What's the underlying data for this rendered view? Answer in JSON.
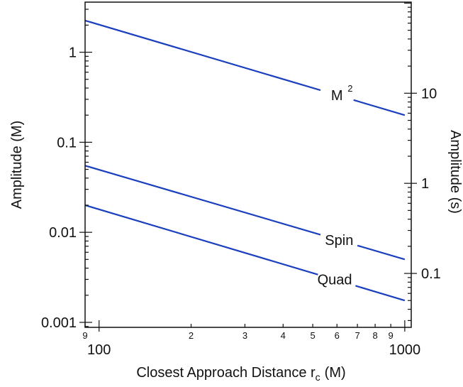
{
  "chart_data": {
    "type": "line",
    "x_scale": "log",
    "y_scale": "log",
    "xlabel": "Closest Approach Distance r",
    "xlabel_subscript": "c",
    "xlabel_unit": "(M)",
    "ylabel": "Amplitude (M)",
    "ylabel_right": "Amplitude (s)",
    "xlim": [
      90,
      1050
    ],
    "ylim": [
      0.00088,
      3.6
    ],
    "y_right_lim": [
      0.0252,
      102.6
    ],
    "x_major_ticks": [
      {
        "value": 100,
        "label": "100"
      },
      {
        "value": 1000,
        "label": "1000"
      }
    ],
    "x_minor_ticks": [
      {
        "value": 90,
        "label": "9"
      },
      {
        "value": 200,
        "label": "2"
      },
      {
        "value": 300,
        "label": "3"
      },
      {
        "value": 400,
        "label": "4"
      },
      {
        "value": 500,
        "label": "5"
      },
      {
        "value": 600,
        "label": "6"
      },
      {
        "value": 700,
        "label": "7"
      },
      {
        "value": 800,
        "label": "8"
      },
      {
        "value": 900,
        "label": "9"
      }
    ],
    "y_left_ticks": [
      {
        "value": 1,
        "label": "1"
      },
      {
        "value": 0.1,
        "label": "0.1"
      },
      {
        "value": 0.01,
        "label": "0.01"
      },
      {
        "value": 0.001,
        "label": "0.001"
      }
    ],
    "y_right_ticks": [
      {
        "value": 10,
        "label": "10"
      },
      {
        "value": 1,
        "label": "1"
      },
      {
        "value": 0.1,
        "label": "0.1"
      }
    ],
    "grid": false,
    "line_color": "#1a3fbf",
    "series": [
      {
        "name": "M",
        "superscript": "2",
        "x": [
          90,
          1000
        ],
        "y": [
          2.25,
          0.2
        ],
        "label_x": 600,
        "label_gap": [
          530,
          680
        ]
      },
      {
        "name": "Spin",
        "x": [
          90,
          1000
        ],
        "y": [
          0.055,
          0.005
        ],
        "label_x": 610,
        "label_gap": [
          530,
          700
        ]
      },
      {
        "name": "Quad",
        "x": [
          90,
          1000
        ],
        "y": [
          0.02,
          0.00175
        ],
        "label_x": 590,
        "label_gap": [
          520,
          690
        ]
      }
    ]
  }
}
